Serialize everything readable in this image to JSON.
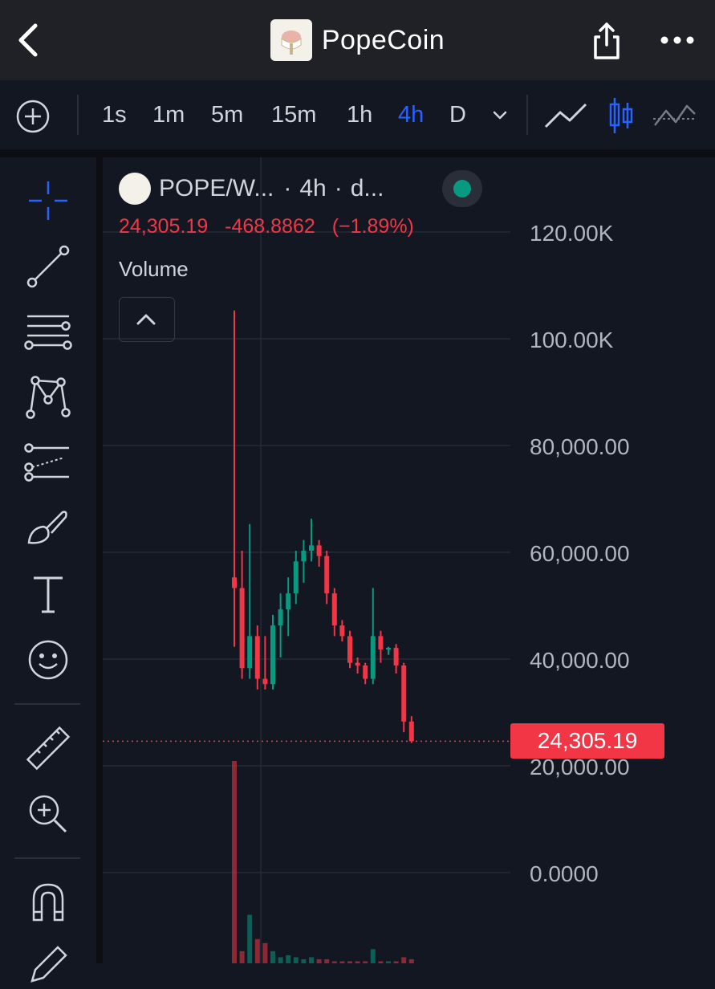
{
  "header": {
    "back_icon": "chevron-left-icon",
    "title": "PopeCoin",
    "logo_icon": "pope-coin-logo",
    "share_icon": "share-icon",
    "more_icon": "more-horizontal-icon"
  },
  "toolbar": {
    "add_icon": "plus-circle-icon",
    "timeframes": [
      "1s",
      "1m",
      "5m",
      "15m",
      "1h",
      "4h",
      "D"
    ],
    "active_timeframe": "4h",
    "timeframe_dropdown_icon": "chevron-down-icon",
    "chart_types": [
      "line-chart-icon",
      "candles-icon",
      "baseline-icon"
    ],
    "active_chart_type": "candles-icon",
    "accent_color": "#2962ff"
  },
  "sidebar": {
    "tools": [
      "crosshair-icon",
      "trend-line-icon",
      "fib-lines-icon",
      "pattern-icon",
      "prediction-icon",
      "brush-icon",
      "text-icon",
      "emoji-icon",
      "ruler-icon",
      "zoom-in-icon",
      "magnet-icon",
      "pencil-icon"
    ]
  },
  "legend": {
    "symbol": "POPE/W...",
    "separator1": "·",
    "interval": "4h",
    "separator2": "·",
    "source": "d...",
    "market_status": "open",
    "status_color": "#089981",
    "last": "24,305.19",
    "change": "-468.8862",
    "change_pct": "(−1.89%)",
    "down_color": "#f23645",
    "up_color": "#089981",
    "volume_label": "Volume",
    "collapse_icon": "chevron-up-icon"
  },
  "price_axis": {
    "labels": [
      "120.00K",
      "100.00K",
      "80,000.00",
      "60,000.00",
      "40,000.00",
      "20,000.00",
      "0.0000"
    ],
    "current_price": "24,305.19"
  },
  "chart_data": {
    "type": "candlestick",
    "title": "",
    "ylim": [
      0,
      125000
    ],
    "y_ticks": [
      120000,
      100000,
      80000,
      60000,
      40000,
      20000
    ],
    "last_price": 24305.19,
    "candles": [
      {
        "o": 55000,
        "h": 105000,
        "l": 42000,
        "c": 53000
      },
      {
        "o": 53000,
        "h": 60000,
        "l": 36000,
        "c": 38000
      },
      {
        "o": 38000,
        "h": 65000,
        "l": 36000,
        "c": 44000
      },
      {
        "o": 44000,
        "h": 46000,
        "l": 34000,
        "c": 36000
      },
      {
        "o": 36000,
        "h": 44000,
        "l": 34000,
        "c": 35000
      },
      {
        "o": 35000,
        "h": 48000,
        "l": 34000,
        "c": 46000
      },
      {
        "o": 46000,
        "h": 52000,
        "l": 40000,
        "c": 49000
      },
      {
        "o": 49000,
        "h": 55000,
        "l": 44000,
        "c": 52000
      },
      {
        "o": 52000,
        "h": 60000,
        "l": 50000,
        "c": 58000
      },
      {
        "o": 58000,
        "h": 62000,
        "l": 54000,
        "c": 60000
      },
      {
        "o": 60000,
        "h": 66000,
        "l": 58000,
        "c": 61000
      },
      {
        "o": 61000,
        "h": 62000,
        "l": 57000,
        "c": 59000
      },
      {
        "o": 59000,
        "h": 60000,
        "l": 50000,
        "c": 52000
      },
      {
        "o": 52000,
        "h": 53000,
        "l": 44000,
        "c": 46000
      },
      {
        "o": 46000,
        "h": 47000,
        "l": 43000,
        "c": 44000
      },
      {
        "o": 44000,
        "h": 45000,
        "l": 38000,
        "c": 39000
      },
      {
        "o": 39000,
        "h": 40000,
        "l": 37000,
        "c": 38500
      },
      {
        "o": 38500,
        "h": 39000,
        "l": 35000,
        "c": 36000
      },
      {
        "o": 36000,
        "h": 53000,
        "l": 35000,
        "c": 44000
      },
      {
        "o": 44000,
        "h": 45000,
        "l": 39000,
        "c": 41500
      },
      {
        "o": 41500,
        "h": 42000,
        "l": 40500,
        "c": 41800
      },
      {
        "o": 41800,
        "h": 42500,
        "l": 37000,
        "c": 38500
      },
      {
        "o": 38500,
        "h": 39000,
        "l": 26000,
        "c": 28000
      },
      {
        "o": 28000,
        "h": 29000,
        "l": 24000,
        "c": 24305.19
      }
    ],
    "volumes": [
      100,
      6,
      24,
      12,
      10,
      6,
      3,
      4,
      3,
      2,
      3,
      2,
      2,
      1,
      1,
      1,
      1,
      1,
      7,
      1,
      1,
      1,
      3,
      2
    ]
  }
}
